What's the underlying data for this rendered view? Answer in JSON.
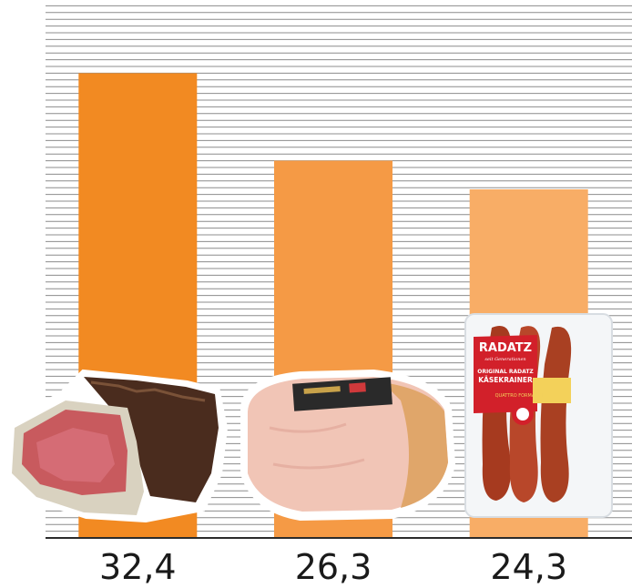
{
  "chart_data": {
    "type": "bar",
    "categories": [
      "Speck",
      "Schinken",
      "Käsekrainer"
    ],
    "values": [
      32.4,
      26.3,
      24.3
    ],
    "value_labels": [
      "32,4",
      "26,3",
      "24,3"
    ],
    "ylim": [
      0,
      37.5
    ],
    "grid": true,
    "title": "",
    "xlabel": "",
    "ylabel": "",
    "colors": [
      "#F28A22",
      "#F59A45",
      "#F8AD66"
    ],
    "package": {
      "brand": "RADATZ",
      "brand_script": "seit Generationen",
      "line1": "ORIGINAL RADATZ",
      "line2": "KÄSEKRAINER",
      "variant": "QUATTRO FORMAGGI"
    }
  }
}
